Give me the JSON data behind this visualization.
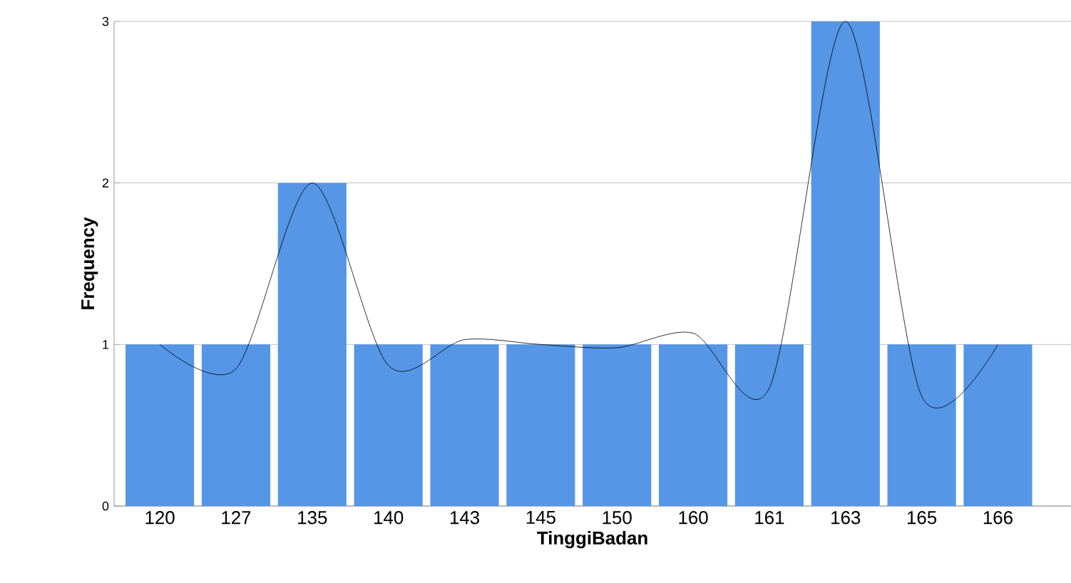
{
  "chart_data": {
    "type": "bar",
    "xlabel": "TinggiBadan",
    "ylabel": "Frequency",
    "categories": [
      "120",
      "127",
      "135",
      "140",
      "143",
      "145",
      "150",
      "160",
      "161",
      "163",
      "165",
      "166"
    ],
    "series": [
      {
        "color": "#5596e6",
        "values": [
          1,
          1,
          2,
          1,
          1,
          1,
          1,
          1,
          1,
          3,
          1,
          1
        ]
      },
      {
        "type": "line",
        "color": "#000000",
        "values": [
          1.0,
          0.85,
          2.0,
          0.87,
          1.03,
          1.0,
          0.98,
          1.07,
          0.73,
          3.0,
          0.68,
          1.0
        ]
      }
    ],
    "ylim": [
      0,
      3
    ],
    "yticks": [
      0,
      1,
      2,
      3
    ],
    "grid": "y",
    "marker": "none",
    "line_style": "solid"
  }
}
